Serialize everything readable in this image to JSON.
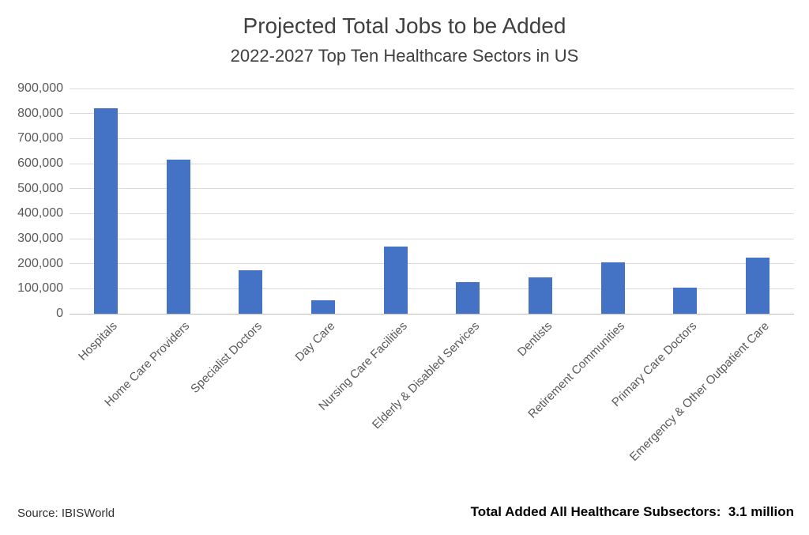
{
  "chart_data": {
    "type": "bar",
    "title": "Projected Total Jobs to be Added",
    "subtitle": "2022-2027 Top Ten Healthcare Sectors in US",
    "categories": [
      "Hospitals",
      "Home Care Providers",
      "Specialist Doctors",
      "Day Care",
      "Nursing Care Facilities",
      "Elderly & Disabled Services",
      "Dentists",
      "Retirement Communities",
      "Primary Care Doctors",
      "Emergency & Other Outpatient Care"
    ],
    "values": [
      820000,
      615000,
      175000,
      55000,
      270000,
      125000,
      145000,
      205000,
      105000,
      225000
    ],
    "xlabel": "",
    "ylabel": "",
    "ylim": [
      0,
      900000
    ],
    "ytick_step": 100000,
    "ytick_labels": [
      "0",
      "100,000",
      "200,000",
      "300,000",
      "400,000",
      "500,000",
      "600,000",
      "700,000",
      "800,000",
      "900,000"
    ],
    "grid": true,
    "legend_position": "none",
    "bar_color": "#4472C4",
    "gridline_color": "#D9D9D9",
    "axis_label_color": "#595959",
    "title_color": "#404040"
  },
  "footer": {
    "source": "Source: IBISWorld",
    "total": "Total Added All Healthcare Subsectors:  3.1 million"
  }
}
